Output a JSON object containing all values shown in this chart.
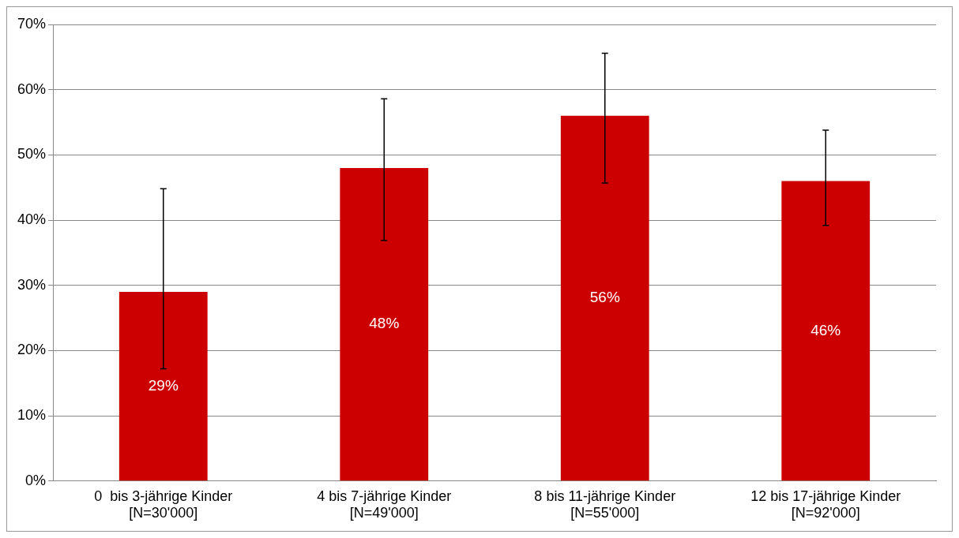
{
  "chart_data": {
    "type": "bar",
    "categories": [
      "0  bis 3-jährige Kinder\n[N=30'000]",
      "4 bis 7-jährige Kinder\n[N=49'000]",
      "8 bis 11-jährige Kinder\n[N=55'000]",
      "12 bis 17-jährige Kinder\n[N=92'000]"
    ],
    "values": [
      29,
      48,
      56,
      46
    ],
    "value_labels": [
      "29%",
      "48%",
      "56%",
      "46%"
    ],
    "errors": [
      [
        17.2,
        44.8
      ],
      [
        36.9,
        58.6
      ],
      [
        45.7,
        65.6
      ],
      [
        39.2,
        53.8
      ]
    ],
    "color": "#cc0000",
    "ylim": [
      0,
      70
    ],
    "yticks": [
      {
        "value": 0,
        "label": "0%"
      },
      {
        "value": 10,
        "label": "10%"
      },
      {
        "value": 20,
        "label": "20%"
      },
      {
        "value": 30,
        "label": "30%"
      },
      {
        "value": 40,
        "label": "40%"
      },
      {
        "value": 50,
        "label": "50%"
      },
      {
        "value": 60,
        "label": "60%"
      },
      {
        "value": 70,
        "label": "70%"
      }
    ],
    "grid": "y",
    "legend": false
  }
}
